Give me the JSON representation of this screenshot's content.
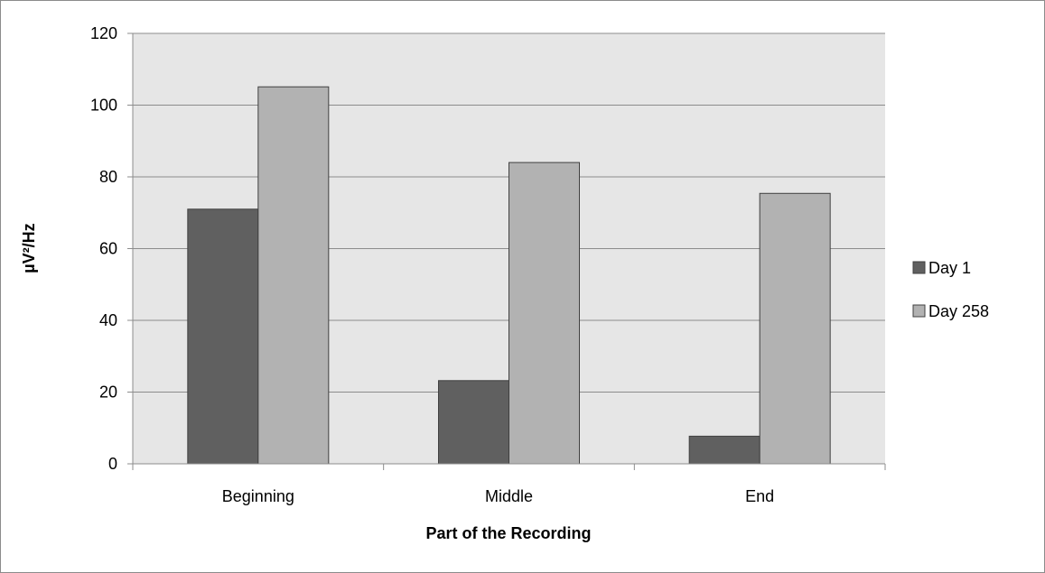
{
  "chart_data": {
    "type": "bar",
    "title": "",
    "xlabel": "Part of the Recording",
    "ylabel": "µV²/Hz",
    "categories": [
      "Beginning",
      "Middle",
      "End"
    ],
    "series": [
      {
        "name": "Day 1",
        "values": [
          71,
          23.2,
          7.7
        ],
        "color": "#606060"
      },
      {
        "name": "Day 258",
        "values": [
          105.1,
          84,
          75.4
        ],
        "color": "#b2b2b2"
      }
    ],
    "ylim": [
      0,
      120
    ],
    "yticks": [
      "0",
      "20",
      "40",
      "60",
      "80",
      "100",
      "120"
    ],
    "grid": true,
    "legend_position": "right",
    "plot_background": "#e6e6e6",
    "frame_color": "#8c8c8c",
    "bar_edge_color": "#404040"
  }
}
